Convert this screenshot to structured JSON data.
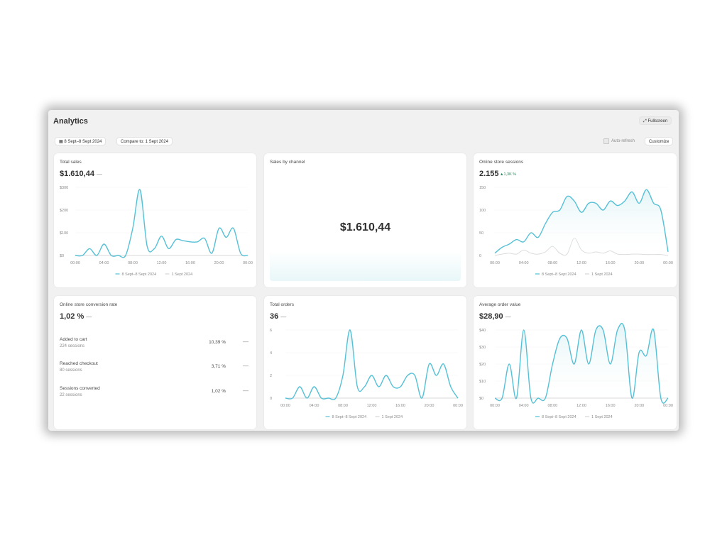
{
  "header": {
    "title": "Analytics",
    "fullscreen_label": "Fullscreen",
    "date_range": "8 Sept–8 Sept 2024",
    "compare_label": "Compare to: 1 Sept 2024",
    "auto_refresh_label": "Auto-refresh",
    "customize_label": "Customize"
  },
  "legend": {
    "current": "8 Sept–8 Sept 2024",
    "previous": "1 Sept 2024"
  },
  "colors": {
    "primary": "#55c0d6",
    "previous": "#d7d7d7"
  },
  "cards": {
    "total_sales": {
      "title": "Total sales",
      "value": "$1.610,44",
      "dash": "—"
    },
    "sales_by_channel": {
      "title": "Sales by channel",
      "value": "$1.610,44"
    },
    "sessions": {
      "title": "Online store sessions",
      "value": "2.155",
      "trend": "▲1,3K %"
    },
    "conversion": {
      "title": "Online store conversion rate",
      "value": "1,02 %",
      "dash": "—",
      "funnel": [
        {
          "label": "Added to cart",
          "sub": "224 sessions",
          "pct": "10,39 %",
          "dash": "—"
        },
        {
          "label": "Reached checkout",
          "sub": "80 sessions",
          "pct": "3,71 %",
          "dash": "—"
        },
        {
          "label": "Sessions converted",
          "sub": "22 sessions",
          "pct": "1,02 %",
          "dash": "—"
        }
      ]
    },
    "orders": {
      "title": "Total orders",
      "value": "36",
      "dash": "—"
    },
    "aov": {
      "title": "Average order value",
      "value": "$28,90",
      "dash": "—"
    }
  },
  "chart_data": [
    {
      "id": "total_sales",
      "type": "line",
      "x_ticks": [
        "00:00",
        "04:00",
        "08:00",
        "12:00",
        "16:00",
        "20:00",
        "00:00"
      ],
      "y_ticks": [
        "$300",
        "$200",
        "$100",
        "$0"
      ],
      "ylim": [
        0,
        300
      ],
      "x_hours": [
        0,
        1,
        2,
        3,
        4,
        5,
        6,
        7,
        8,
        9,
        10,
        11,
        12,
        13,
        14,
        15,
        16,
        17,
        18,
        19,
        20,
        21,
        22,
        23,
        24
      ],
      "series": [
        {
          "name": "8 Sept–8 Sept 2024",
          "values": [
            0,
            0,
            30,
            0,
            50,
            0,
            0,
            0,
            120,
            290,
            40,
            30,
            85,
            30,
            70,
            65,
            60,
            60,
            75,
            10,
            120,
            80,
            120,
            10,
            0
          ]
        },
        {
          "name": "1 Sept 2024",
          "values": [
            0,
            0,
            0,
            0,
            0,
            0,
            0,
            0,
            0,
            0,
            0,
            0,
            0,
            0,
            0,
            0,
            0,
            0,
            0,
            0,
            0,
            0,
            0,
            0,
            0
          ]
        }
      ]
    },
    {
      "id": "sessions",
      "type": "line",
      "x_ticks": [
        "00:00",
        "04:00",
        "08:00",
        "12:00",
        "16:00",
        "20:00",
        "00:00"
      ],
      "y_ticks": [
        "150",
        "100",
        "50",
        "0"
      ],
      "ylim": [
        0,
        150
      ],
      "x_hours": [
        0,
        1,
        2,
        3,
        4,
        5,
        6,
        7,
        8,
        9,
        10,
        11,
        12,
        13,
        14,
        15,
        16,
        17,
        18,
        19,
        20,
        21,
        22,
        23,
        24
      ],
      "series": [
        {
          "name": "8 Sept–8 Sept 2024",
          "values": [
            5,
            18,
            25,
            35,
            30,
            50,
            40,
            70,
            95,
            100,
            130,
            120,
            95,
            115,
            115,
            100,
            120,
            110,
            120,
            140,
            115,
            145,
            115,
            100,
            8
          ]
        },
        {
          "name": "1 Sept 2024",
          "values": [
            0,
            3,
            5,
            3,
            12,
            5,
            3,
            8,
            20,
            5,
            3,
            38,
            12,
            5,
            8,
            5,
            10,
            3,
            2,
            3,
            3,
            2,
            2,
            2,
            0
          ]
        }
      ]
    },
    {
      "id": "orders",
      "type": "line",
      "x_ticks": [
        "00:00",
        "04:00",
        "08:00",
        "12:00",
        "16:00",
        "20:00",
        "00:00"
      ],
      "y_ticks": [
        "6",
        "4",
        "2",
        "0"
      ],
      "ylim": [
        0,
        6
      ],
      "x_hours": [
        0,
        1,
        2,
        3,
        4,
        5,
        6,
        7,
        8,
        9,
        10,
        11,
        12,
        13,
        14,
        15,
        16,
        17,
        18,
        19,
        20,
        21,
        22,
        23,
        24
      ],
      "series": [
        {
          "name": "8 Sept–8 Sept 2024",
          "values": [
            0,
            0,
            1,
            0,
            1,
            0,
            0,
            0,
            2,
            6,
            1,
            1,
            2,
            1,
            2,
            1,
            1,
            2,
            2,
            0,
            3,
            2,
            3,
            1,
            0
          ]
        },
        {
          "name": "1 Sept 2024",
          "values": [
            0,
            0,
            0,
            0,
            0,
            0,
            0,
            0,
            0,
            0,
            0,
            0,
            0,
            0,
            0,
            0,
            0,
            0,
            0,
            0,
            0,
            0,
            0,
            0,
            0
          ]
        }
      ]
    },
    {
      "id": "aov",
      "type": "line",
      "x_ticks": [
        "00:00",
        "04:00",
        "08:00",
        "12:00",
        "16:00",
        "20:00",
        "00:00"
      ],
      "y_ticks": [
        "$40",
        "$30",
        "$20",
        "$10",
        "$0"
      ],
      "ylim": [
        0,
        40
      ],
      "x_hours": [
        0,
        1,
        2,
        3,
        4,
        5,
        6,
        7,
        8,
        9,
        10,
        11,
        12,
        13,
        14,
        15,
        16,
        17,
        18,
        19,
        20,
        21,
        22,
        23,
        24
      ],
      "series": [
        {
          "name": "8 Sept–8 Sept 2024",
          "values": [
            0,
            0,
            20,
            0,
            40,
            0,
            0,
            0,
            20,
            35,
            35,
            20,
            40,
            20,
            40,
            40,
            20,
            40,
            40,
            0,
            27,
            25,
            40,
            0,
            0
          ]
        },
        {
          "name": "1 Sept 2024",
          "values": [
            0,
            0,
            0,
            0,
            0,
            0,
            0,
            0,
            0,
            0,
            0,
            0,
            0,
            0,
            0,
            0,
            0,
            0,
            0,
            0,
            0,
            0,
            0,
            0,
            0
          ]
        }
      ]
    }
  ]
}
